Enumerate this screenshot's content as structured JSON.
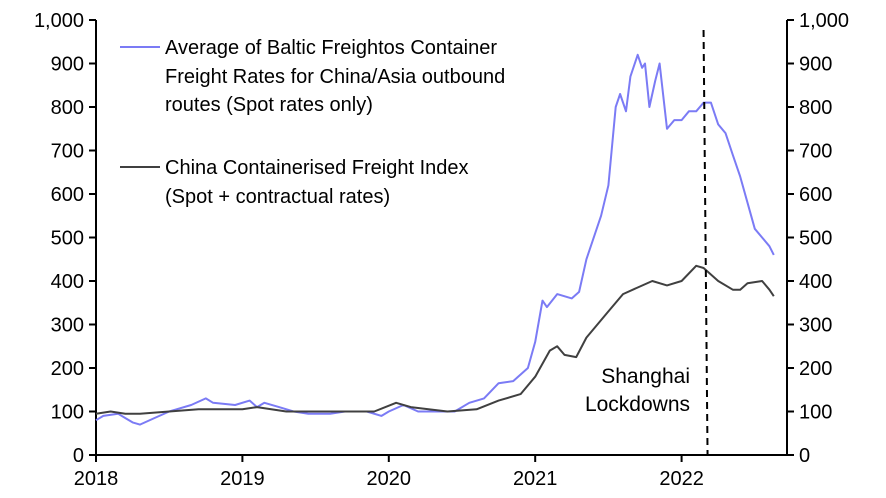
{
  "chart_data": {
    "type": "line",
    "title": "",
    "xlabel": "",
    "ylabel": "",
    "xlim": [
      2018,
      2022.72
    ],
    "ylim": [
      0,
      1000
    ],
    "x_ticks": [
      "2018",
      "2019",
      "2020",
      "2021",
      "2022"
    ],
    "y_ticks_left": [
      "0",
      "100",
      "200",
      "300",
      "400",
      "500",
      "600",
      "700",
      "800",
      "900",
      "1,000"
    ],
    "y_ticks_right": [
      "0",
      "100",
      "200",
      "300",
      "400",
      "500",
      "600",
      "700",
      "800",
      "900",
      "1,000"
    ],
    "grid": false,
    "legend_placement": "top-left",
    "series": [
      {
        "name_lines": [
          "Average of Baltic Freightos Container",
          "Freight Rates for China/Asia outbound",
          "routes (Spot rates only)"
        ],
        "color": "#7b7bf5",
        "x": [
          2018.0,
          2018.05,
          2018.15,
          2018.25,
          2018.3,
          2018.4,
          2018.5,
          2018.55,
          2018.65,
          2018.75,
          2018.8,
          2018.95,
          2019.05,
          2019.1,
          2019.15,
          2019.25,
          2019.35,
          2019.45,
          2019.6,
          2019.7,
          2019.85,
          2019.95,
          2020.0,
          2020.1,
          2020.2,
          2020.3,
          2020.45,
          2020.55,
          2020.65,
          2020.75,
          2020.85,
          2020.95,
          2021.0,
          2021.05,
          2021.08,
          2021.15,
          2021.25,
          2021.3,
          2021.35,
          2021.45,
          2021.5,
          2021.55,
          2021.58,
          2021.62,
          2021.65,
          2021.7,
          2021.73,
          2021.75,
          2021.78,
          2021.82,
          2021.85,
          2021.9,
          2021.95,
          2022.0,
          2022.05,
          2022.1,
          2022.15,
          2022.2,
          2022.25,
          2022.3,
          2022.35,
          2022.4,
          2022.45,
          2022.5,
          2022.55,
          2022.6,
          2022.63
        ],
        "values": [
          80,
          90,
          95,
          75,
          70,
          85,
          100,
          105,
          115,
          130,
          120,
          115,
          125,
          110,
          120,
          110,
          100,
          95,
          95,
          100,
          100,
          90,
          100,
          115,
          100,
          100,
          100,
          120,
          130,
          165,
          170,
          200,
          260,
          355,
          340,
          370,
          360,
          375,
          450,
          550,
          620,
          800,
          830,
          790,
          870,
          920,
          890,
          900,
          800,
          860,
          900,
          750,
          770,
          770,
          790,
          790,
          810,
          810,
          760,
          740,
          690,
          640,
          580,
          520,
          500,
          480,
          460
        ]
      },
      {
        "name_lines": [
          "China Containerised Freight Index",
          "(Spot + contractual rates)"
        ],
        "color": "#404040",
        "x": [
          2018.0,
          2018.1,
          2018.2,
          2018.3,
          2018.5,
          2018.7,
          2019.0,
          2019.1,
          2019.3,
          2019.6,
          2019.9,
          2020.05,
          2020.15,
          2020.4,
          2020.6,
          2020.75,
          2020.9,
          2021.0,
          2021.1,
          2021.15,
          2021.2,
          2021.28,
          2021.35,
          2021.5,
          2021.6,
          2021.7,
          2021.8,
          2021.9,
          2022.0,
          2022.1,
          2022.15,
          2022.25,
          2022.35,
          2022.4,
          2022.45,
          2022.55,
          2022.6,
          2022.63
        ],
        "values": [
          95,
          100,
          95,
          95,
          100,
          105,
          105,
          110,
          100,
          100,
          100,
          120,
          110,
          100,
          105,
          125,
          140,
          180,
          240,
          250,
          230,
          225,
          270,
          330,
          370,
          385,
          400,
          390,
          400,
          435,
          430,
          400,
          380,
          380,
          395,
          400,
          380,
          365
        ]
      }
    ],
    "annotations": [
      {
        "type": "vline",
        "x": 2022.15,
        "label_lines": [
          "Shanghai",
          "Lockdowns"
        ]
      }
    ]
  }
}
